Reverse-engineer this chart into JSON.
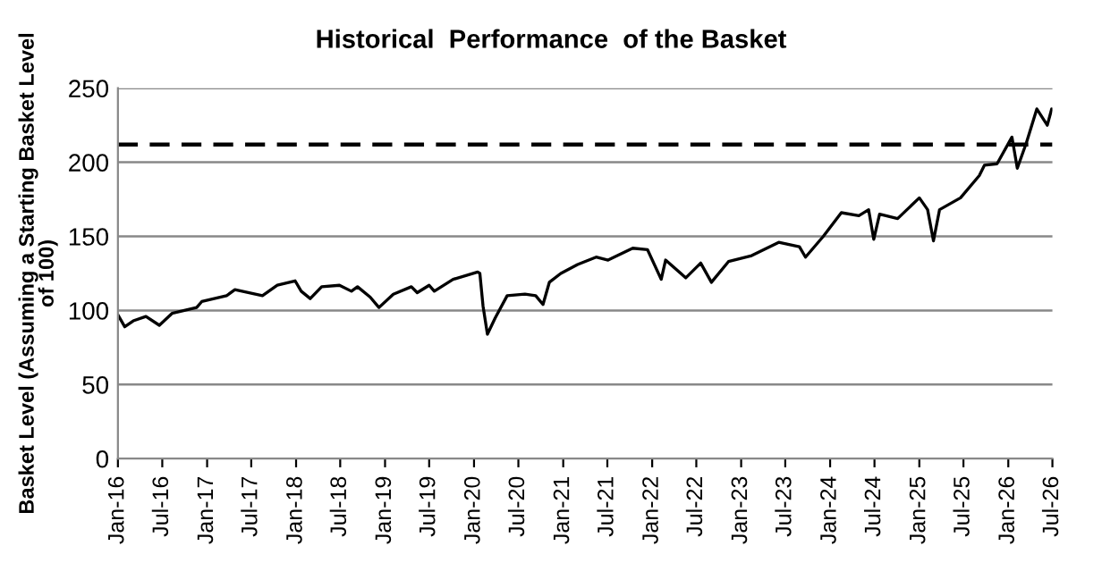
{
  "chart_data": {
    "type": "line",
    "title": "Historical  Performance  of the Basket",
    "ylabel": "Basket Level (Assuming a Starting Basket Level\nof 100)",
    "x": [
      "2016-01-01",
      "2016-01-29",
      "2016-03-04",
      "2016-04-25",
      "2016-06-19",
      "2016-08-10",
      "2016-11-19",
      "2016-12-10",
      "2017-03-22",
      "2017-04-25",
      "2017-08-16",
      "2017-10-16",
      "2017-12-28",
      "2018-01-22",
      "2018-02-28",
      "2018-04-16",
      "2018-06-28",
      "2018-08-16",
      "2018-09-10",
      "2018-11-01",
      "2018-12-07",
      "2019-02-04",
      "2019-04-19",
      "2019-05-13",
      "2019-07-01",
      "2019-07-22",
      "2019-10-07",
      "2020-01-16",
      "2020-01-25",
      "2020-02-07",
      "2020-02-25",
      "2020-03-28",
      "2020-05-16",
      "2020-07-28",
      "2020-09-10",
      "2020-10-10",
      "2020-11-05",
      "2020-12-22",
      "2021-03-01",
      "2021-05-16",
      "2021-07-04",
      "2021-10-13",
      "2021-12-13",
      "2022-02-07",
      "2022-02-25",
      "2022-05-19",
      "2022-07-19",
      "2022-09-01",
      "2022-11-10",
      "2023-02-13",
      "2023-06-04",
      "2023-08-28",
      "2023-09-22",
      "2023-12-04",
      "2024-02-16",
      "2024-04-28",
      "2024-06-07",
      "2024-06-28",
      "2024-07-22",
      "2024-10-04",
      "2025-01-01",
      "2025-02-04",
      "2025-02-28",
      "2025-03-25",
      "2025-06-19",
      "2025-09-04",
      "2025-09-25",
      "2025-11-16",
      "2026-01-16",
      "2026-02-07",
      "2026-03-16",
      "2026-04-28",
      "2026-06-10",
      "2026-06-28"
    ],
    "series": [
      {
        "color": "#000000",
        "values": [
          97,
          89,
          93,
          96,
          90,
          98,
          102,
          106,
          110,
          114,
          110,
          117,
          120,
          113,
          108,
          116,
          117,
          113,
          116,
          109,
          102,
          111,
          116,
          112,
          117,
          113,
          121,
          126,
          125,
          103,
          84,
          95,
          110,
          111,
          110,
          104,
          119,
          125,
          131,
          136,
          134,
          142,
          141,
          121,
          134,
          122,
          132,
          119,
          133,
          137,
          146,
          143,
          136,
          150,
          166,
          164,
          168,
          148,
          165,
          162,
          176,
          168,
          147,
          168,
          176,
          191,
          198,
          199,
          217,
          196,
          213,
          236,
          225,
          236
        ]
      }
    ],
    "xlim": [
      "2016-01-01",
      "2026-07-01"
    ],
    "xticks": [
      {
        "value": "2016-01-01",
        "label": "Jan-16"
      },
      {
        "value": "2016-07-01",
        "label": "Jul-16"
      },
      {
        "value": "2017-01-01",
        "label": "Jan-17"
      },
      {
        "value": "2017-07-01",
        "label": "Jul-17"
      },
      {
        "value": "2018-01-01",
        "label": "Jan-18"
      },
      {
        "value": "2018-07-01",
        "label": "Jul-18"
      },
      {
        "value": "2019-01-01",
        "label": "Jan-19"
      },
      {
        "value": "2019-07-01",
        "label": "Jul-19"
      },
      {
        "value": "2020-01-01",
        "label": "Jan-20"
      },
      {
        "value": "2020-07-01",
        "label": "Jul-20"
      },
      {
        "value": "2021-01-01",
        "label": "Jan-21"
      },
      {
        "value": "2021-07-01",
        "label": "Jul-21"
      },
      {
        "value": "2022-01-01",
        "label": "Jan-22"
      },
      {
        "value": "2022-07-01",
        "label": "Jul-22"
      },
      {
        "value": "2023-01-01",
        "label": "Jan-23"
      },
      {
        "value": "2023-07-01",
        "label": "Jul-23"
      },
      {
        "value": "2024-01-01",
        "label": "Jan-24"
      },
      {
        "value": "2024-07-01",
        "label": "Jul-24"
      },
      {
        "value": "2025-01-01",
        "label": "Jan-25"
      },
      {
        "value": "2025-07-01",
        "label": "Jul-25"
      },
      {
        "value": "2026-01-01",
        "label": "Jan-26"
      },
      {
        "value": "2026-07-01",
        "label": "Jul-26"
      }
    ],
    "ylim": [
      0,
      250
    ],
    "yticks": [
      0,
      50,
      100,
      150,
      200,
      250
    ],
    "grid": "y",
    "legend": false,
    "ref_lines": [
      {
        "axis": "y",
        "value": 212,
        "color": "#000000",
        "line_style": "dashed"
      }
    ]
  }
}
